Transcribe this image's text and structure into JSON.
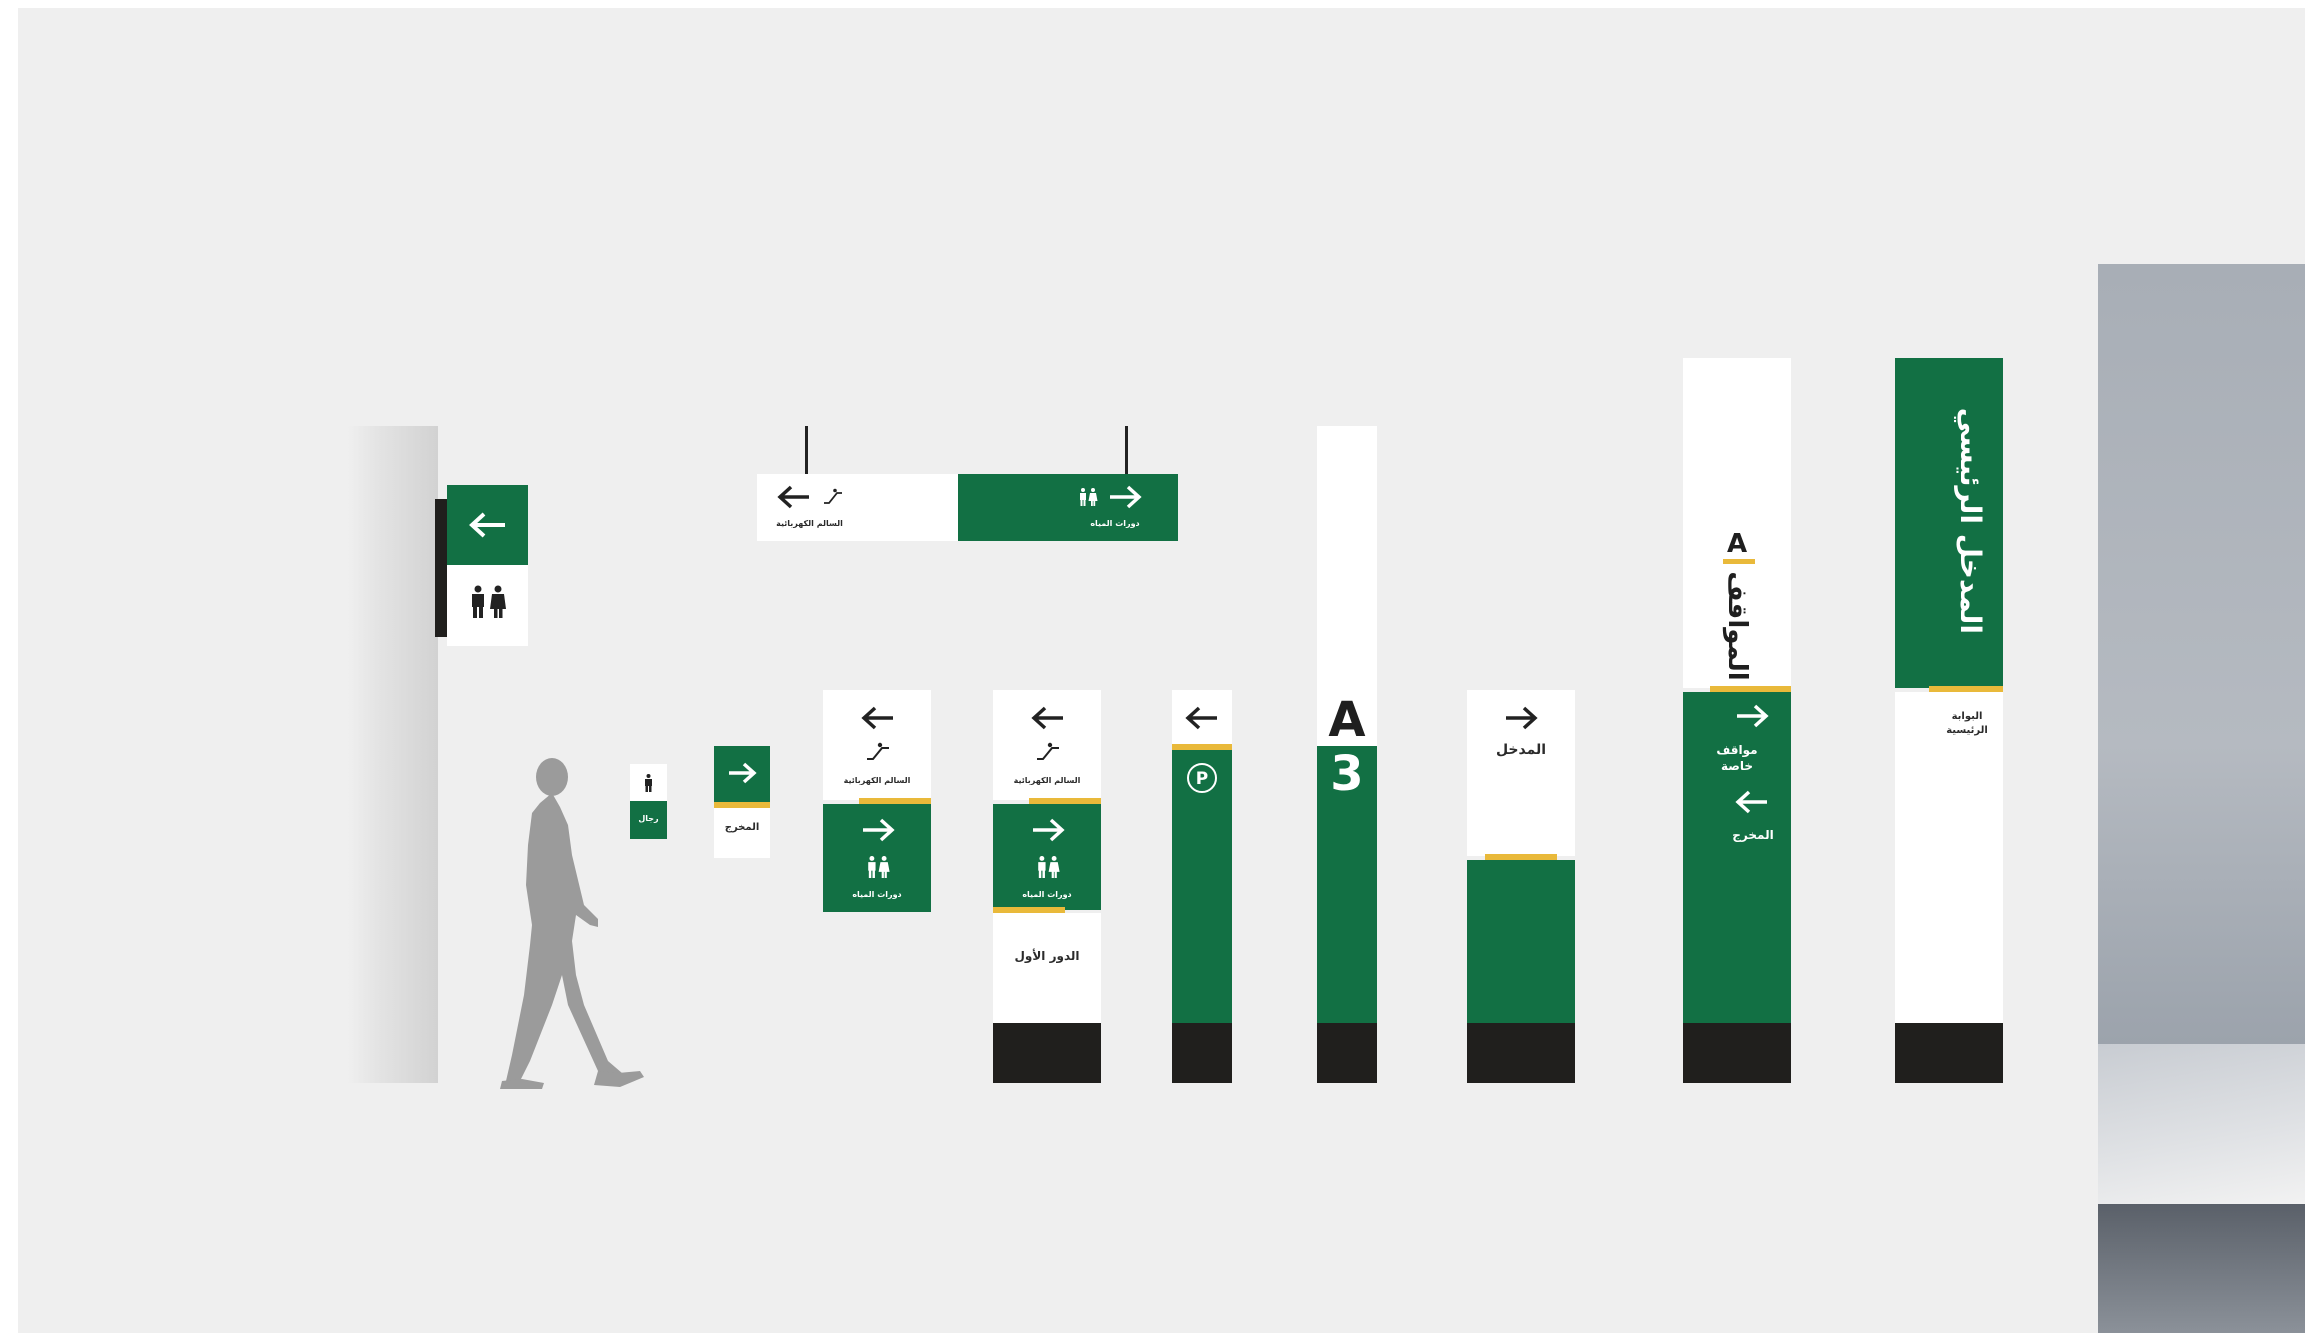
{
  "colors": {
    "background": "#efefef",
    "green": "#127044",
    "white": "#ffffff",
    "black": "#201f1d",
    "yellow": "#e9b93a",
    "silhouette": "#9b9b9b"
  },
  "signs": {
    "wall_mount": {
      "arrow": "arrow-left-icon",
      "icon": "restroom-icon"
    },
    "hanging": {
      "left_label": "السالم الكهربائية",
      "left_icon": "escalator-icon",
      "right_label": "دورات المياه",
      "right_icon": "restroom-icon"
    },
    "small_men": {
      "label": "رجال",
      "icon": "man-icon"
    },
    "exit_small": {
      "label": "المخرج",
      "arrow": "arrow-right-icon"
    },
    "wall_combo": {
      "top_label": "السالم الكهربائية",
      "bottom_label": "دورات المياه"
    },
    "totem_floor": {
      "top_label": "السالم الكهربائية",
      "middle_label": "دورات المياه",
      "bottom_label": "الدور الأول"
    },
    "totem_parking": {
      "icon": "parking-icon"
    },
    "totem_zone": {
      "letter": "A",
      "number": "3"
    },
    "totem_entrance": {
      "label": "المدخل"
    },
    "totem_parking_main": {
      "vertical_label": "المواقف",
      "letter": "A",
      "label_1": "مواقف خاصة",
      "label_2": "المخرج"
    },
    "totem_main_entrance": {
      "vertical_label": "المدخل الرئيسي",
      "label": "البوابة الرئيسية"
    }
  }
}
